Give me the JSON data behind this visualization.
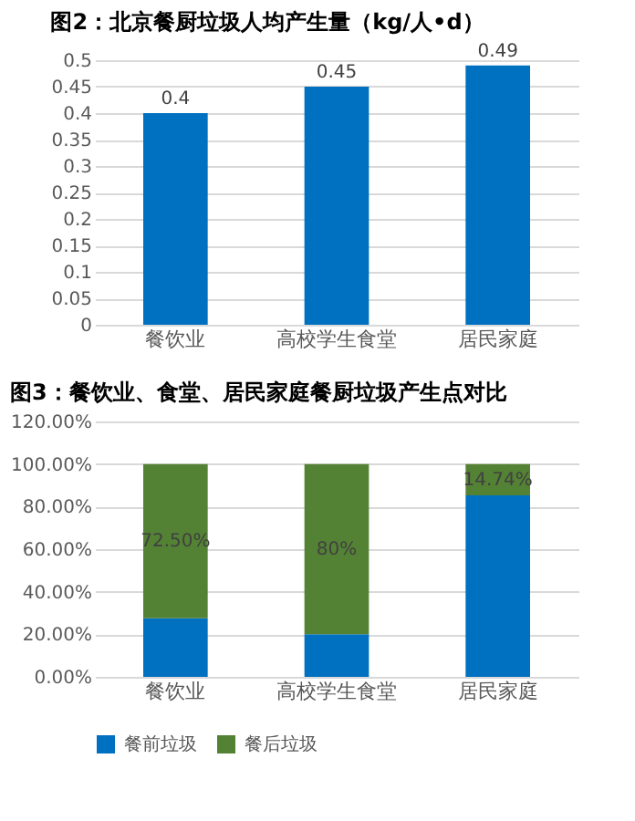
{
  "chart_data": [
    {
      "type": "bar",
      "title": "图2：北京餐厨垃圾人均产生量（kg/人•d）",
      "categories": [
        "餐饮业",
        "高校学生食堂",
        "居民家庭"
      ],
      "values": [
        0.4,
        0.45,
        0.49
      ],
      "color": "#0070c0",
      "data_labels": true,
      "ylim": [
        0,
        0.5
      ],
      "yticks": [
        0,
        0.05,
        0.1,
        0.15,
        0.2,
        0.25,
        0.3,
        0.35,
        0.4,
        0.45,
        0.5
      ],
      "grid": "y",
      "legend": false
    },
    {
      "type": "bar",
      "title": "图3：餐饮业、食堂、居民家庭餐厨垃圾产生点对比",
      "categories": [
        "餐饮业",
        "高校学生食堂",
        "居民家庭"
      ],
      "stacked": true,
      "series": [
        {
          "name": "餐前垃圾",
          "color": "#0070c0",
          "values": [
            27.5,
            20,
            85.26
          ]
        },
        {
          "name": "餐后垃圾",
          "color": "#548235",
          "values": [
            72.5,
            80,
            14.74
          ],
          "value_labels": [
            "72.50%",
            "80%",
            "14.74%"
          ]
        }
      ],
      "ylim": [
        0,
        120
      ],
      "yticks": [
        {
          "value": 0,
          "label": "0.00%"
        },
        {
          "value": 20,
          "label": "20.00%"
        },
        {
          "value": 40,
          "label": "40.00%"
        },
        {
          "value": 60,
          "label": "60.00%"
        },
        {
          "value": 80,
          "label": "80.00%"
        },
        {
          "value": 100,
          "label": "100.00%"
        },
        {
          "value": 120,
          "label": "120.00%"
        }
      ],
      "grid": "y",
      "legend": "bottom"
    }
  ]
}
